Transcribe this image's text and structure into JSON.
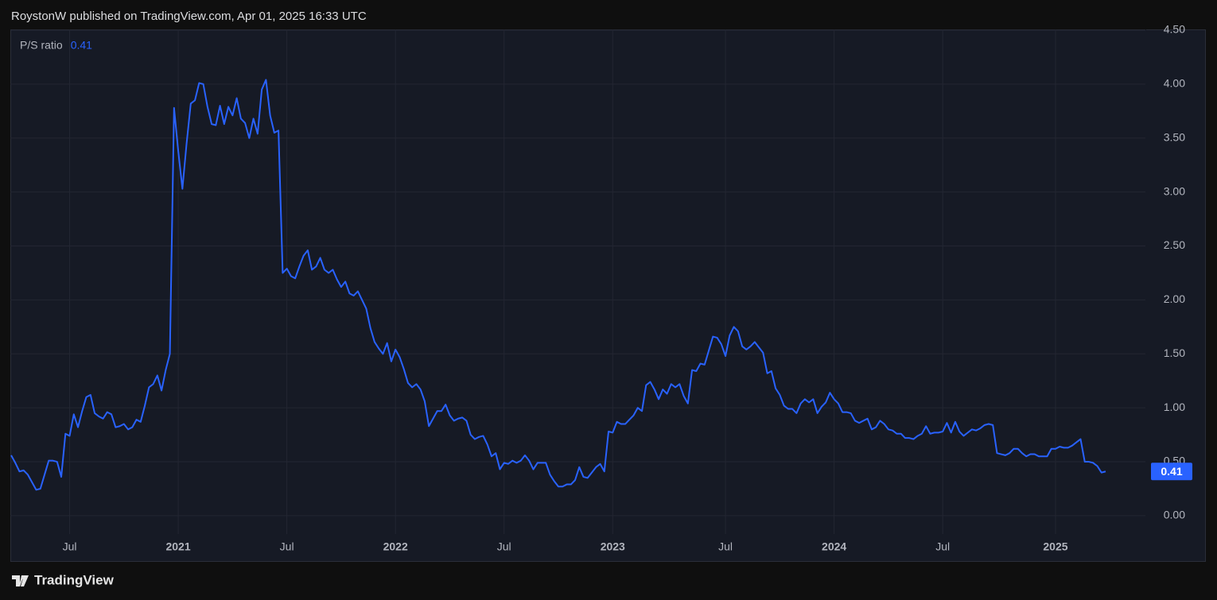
{
  "header": "RoystonW published on TradingView.com, Apr 01, 2025 16:33 UTC",
  "chart_data": {
    "type": "line",
    "legend": "top-left",
    "grid": true,
    "ylim": [
      -0.17,
      4.5
    ],
    "yticks": [
      {
        "value": 0,
        "label": "0.00"
      },
      {
        "value": 0.5,
        "label": "0.50"
      },
      {
        "value": 1,
        "label": "1.00"
      },
      {
        "value": 1.5,
        "label": "1.50"
      },
      {
        "value": 2,
        "label": "2.00"
      },
      {
        "value": 2.5,
        "label": "2.50"
      },
      {
        "value": 3,
        "label": "3.00"
      },
      {
        "value": 3.5,
        "label": "3.50"
      },
      {
        "value": 4,
        "label": "4.00"
      },
      {
        "value": 4.5,
        "label": "4.50"
      }
    ],
    "categories": [
      null,
      null,
      null,
      null,
      null,
      null,
      null,
      null,
      null,
      null,
      null,
      null,
      null,
      null,
      "Jul",
      null,
      null,
      null,
      null,
      null,
      null,
      null,
      null,
      null,
      null,
      null,
      null,
      null,
      null,
      null,
      null,
      null,
      null,
      null,
      null,
      null,
      null,
      null,
      null,
      null,
      "2021",
      null,
      null,
      null,
      null,
      null,
      null,
      null,
      null,
      null,
      null,
      null,
      null,
      null,
      null,
      null,
      null,
      null,
      null,
      null,
      null,
      null,
      null,
      null,
      null,
      null,
      "Jul",
      null,
      null,
      null,
      null,
      null,
      null,
      null,
      null,
      null,
      null,
      null,
      null,
      null,
      null,
      null,
      null,
      null,
      null,
      null,
      null,
      null,
      null,
      null,
      null,
      null,
      "2022",
      null,
      null,
      null,
      null,
      null,
      null,
      null,
      null,
      null,
      null,
      null,
      null,
      null,
      null,
      null,
      null,
      null,
      null,
      null,
      null,
      null,
      null,
      null,
      null,
      null,
      "Jul",
      null,
      null,
      null,
      null,
      null,
      null,
      null,
      null,
      null,
      null,
      null,
      null,
      null,
      null,
      null,
      null,
      null,
      null,
      null,
      null,
      null,
      null,
      null,
      null,
      null,
      "2023",
      null,
      null,
      null,
      null,
      null,
      null,
      null,
      null,
      null,
      null,
      null,
      null,
      null,
      null,
      null,
      null,
      null,
      null,
      null,
      null,
      null,
      null,
      null,
      null,
      null,
      null,
      "Jul",
      null,
      null,
      null,
      null,
      null,
      null,
      null,
      null,
      null,
      null,
      null,
      null,
      null,
      null,
      null,
      null,
      null,
      null,
      null,
      null,
      null,
      null,
      null,
      null,
      null,
      "2024",
      null,
      null,
      null,
      null,
      null,
      null,
      null,
      null,
      null,
      null,
      null,
      null,
      null,
      null,
      null,
      null,
      null,
      null,
      null,
      null,
      null,
      null,
      null,
      null,
      null,
      "Jul",
      null,
      null,
      null,
      null,
      null,
      null,
      null,
      null,
      null,
      null,
      null,
      null,
      null,
      null,
      null,
      null,
      null,
      null,
      null,
      null,
      null,
      null,
      null,
      null,
      null,
      null,
      "2025",
      null,
      null,
      null,
      null,
      null,
      null,
      null,
      null,
      null,
      null,
      null,
      null
    ],
    "series": [
      {
        "name": "P/S ratio",
        "color": "#2962ff",
        "values": [
          0.56,
          0.49,
          0.41,
          0.42,
          0.38,
          0.31,
          0.24,
          0.25,
          0.38,
          0.51,
          0.51,
          0.5,
          0.36,
          0.76,
          0.74,
          0.94,
          0.82,
          0.97,
          1.1,
          1.12,
          0.95,
          0.92,
          0.9,
          0.96,
          0.94,
          0.82,
          0.83,
          0.85,
          0.8,
          0.82,
          0.89,
          0.87,
          1.02,
          1.19,
          1.22,
          1.3,
          1.16,
          1.35,
          1.5,
          3.78,
          3.38,
          3.03,
          3.45,
          3.82,
          3.85,
          4.01,
          4.0,
          3.79,
          3.63,
          3.62,
          3.8,
          3.63,
          3.79,
          3.71,
          3.87,
          3.68,
          3.64,
          3.5,
          3.68,
          3.54,
          3.95,
          4.04,
          3.71,
          3.55,
          3.57,
          2.25,
          2.29,
          2.22,
          2.2,
          2.31,
          2.41,
          2.46,
          2.28,
          2.31,
          2.39,
          2.28,
          2.25,
          2.28,
          2.19,
          2.12,
          2.17,
          2.06,
          2.04,
          2.08,
          2.0,
          1.92,
          1.74,
          1.61,
          1.55,
          1.5,
          1.6,
          1.43,
          1.54,
          1.47,
          1.36,
          1.23,
          1.19,
          1.22,
          1.17,
          1.06,
          0.83,
          0.9,
          0.97,
          0.97,
          1.03,
          0.93,
          0.88,
          0.9,
          0.91,
          0.88,
          0.75,
          0.71,
          0.73,
          0.74,
          0.66,
          0.55,
          0.58,
          0.43,
          0.49,
          0.48,
          0.51,
          0.49,
          0.51,
          0.56,
          0.51,
          0.43,
          0.49,
          0.49,
          0.49,
          0.38,
          0.32,
          0.27,
          0.27,
          0.29,
          0.29,
          0.33,
          0.45,
          0.36,
          0.35,
          0.4,
          0.45,
          0.48,
          0.41,
          0.78,
          0.77,
          0.87,
          0.85,
          0.85,
          0.89,
          0.93,
          1.0,
          0.97,
          1.21,
          1.24,
          1.17,
          1.08,
          1.17,
          1.13,
          1.22,
          1.19,
          1.22,
          1.11,
          1.04,
          1.35,
          1.34,
          1.41,
          1.4,
          1.53,
          1.66,
          1.65,
          1.59,
          1.48,
          1.67,
          1.75,
          1.71,
          1.57,
          1.54,
          1.57,
          1.61,
          1.56,
          1.51,
          1.32,
          1.34,
          1.18,
          1.12,
          1.02,
          0.99,
          0.99,
          0.95,
          1.04,
          1.08,
          1.05,
          1.08,
          0.95,
          1.01,
          1.05,
          1.14,
          1.08,
          1.04,
          0.96,
          0.96,
          0.95,
          0.88,
          0.86,
          0.88,
          0.9,
          0.8,
          0.82,
          0.88,
          0.85,
          0.8,
          0.79,
          0.76,
          0.76,
          0.72,
          0.72,
          0.71,
          0.74,
          0.76,
          0.83,
          0.76,
          0.77,
          0.77,
          0.78,
          0.86,
          0.77,
          0.87,
          0.78,
          0.74,
          0.77,
          0.8,
          0.79,
          0.81,
          0.84,
          0.85,
          0.84,
          0.58,
          0.57,
          0.56,
          0.58,
          0.62,
          0.62,
          0.58,
          0.55,
          0.57,
          0.57,
          0.55,
          0.55,
          0.55,
          0.62,
          0.62,
          0.64,
          0.63,
          0.63,
          0.65,
          0.68,
          0.71,
          0.5,
          0.5,
          0.49,
          0.46,
          0.4,
          0.41
        ]
      }
    ]
  },
  "footer": {
    "brand": "TradingView"
  }
}
